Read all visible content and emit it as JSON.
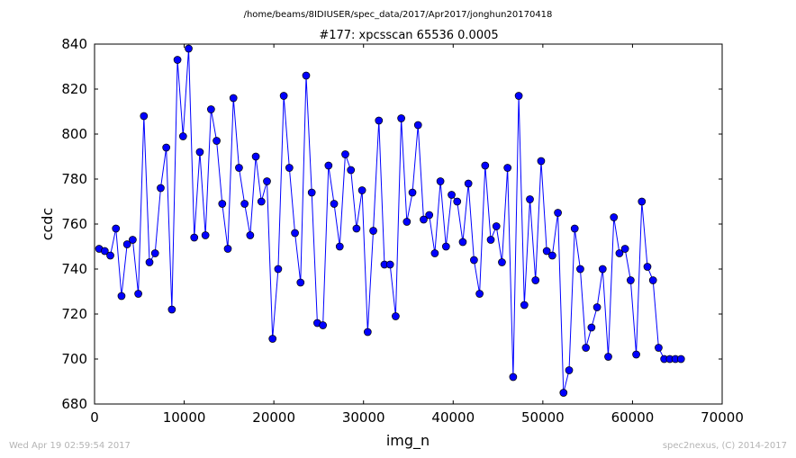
{
  "page": {
    "path_title": "/home/beams/8IDIUSER/spec_data/2017/Apr2017/jonghun20170418",
    "footer_left": "Wed Apr 19 02:59:54 2017",
    "footer_right": "spec2nexus, (C) 2014-2017"
  },
  "chart_data": {
    "type": "line",
    "title": "#177: xpcsscan 65536 0.0005",
    "xlabel": "img_n",
    "ylabel": "ccdc",
    "xlim": [
      0,
      70000
    ],
    "ylim": [
      680,
      840
    ],
    "x_ticks": [
      "0",
      "10000",
      "20000",
      "30000",
      "40000",
      "50000",
      "60000",
      "70000"
    ],
    "y_ticks": [
      "680",
      "700",
      "720",
      "740",
      "760",
      "780",
      "800",
      "820",
      "840"
    ],
    "grid": false,
    "line_color": "#0000ff",
    "marker": "circle",
    "series": [
      {
        "x": [
          512,
          1136,
          1760,
          2384,
          3008,
          3632,
          4256,
          4880,
          5504,
          6128,
          6752,
          7376,
          8000,
          8624,
          9248,
          9872,
          10496,
          11120,
          11744,
          12368,
          12992,
          13616,
          14240,
          14864,
          15488,
          16112,
          16736,
          17360,
          17984,
          18608,
          19232,
          19856,
          20480,
          21104,
          21728,
          22352,
          22976,
          23600,
          24224,
          24848,
          25472,
          26096,
          26720,
          27344,
          27968,
          28592,
          29216,
          29840,
          30464,
          31088,
          31712,
          32336,
          32960,
          33584,
          34208,
          34832,
          35456,
          36080,
          36704,
          37328,
          37952,
          38576,
          39200,
          39824,
          40448,
          41072,
          41696,
          42320,
          42944,
          43568,
          44192,
          44816,
          45440,
          46064,
          46688,
          47312,
          47936,
          48560,
          49184,
          49808,
          50432,
          51056,
          51680,
          52304,
          52928,
          53552,
          54176,
          54800,
          55424,
          56048,
          56672,
          57296,
          57920,
          58544,
          59168,
          59792,
          60416,
          61040,
          61664,
          62288,
          62912,
          63536,
          64160,
          64784,
          65408
        ],
        "y": [
          749,
          748,
          746,
          758,
          728,
          751,
          753,
          729,
          808,
          743,
          747,
          776,
          794,
          722,
          833,
          799,
          838,
          754,
          792,
          755,
          811,
          797,
          769,
          749,
          816,
          785,
          769,
          755,
          790,
          770,
          779,
          709,
          740,
          817,
          785,
          756,
          734,
          826,
          774,
          716,
          715,
          786,
          769,
          750,
          791,
          784,
          758,
          775,
          712,
          757,
          806,
          742,
          742,
          719,
          807,
          761,
          774,
          804,
          762,
          764,
          747,
          779,
          750,
          773,
          770,
          752,
          778,
          744,
          729,
          786,
          753,
          759,
          743,
          785,
          692,
          817,
          724,
          771,
          735,
          788,
          748,
          746,
          765,
          685,
          695,
          758,
          740,
          705,
          714,
          723,
          740,
          701,
          763,
          747,
          749,
          735,
          702,
          770,
          741,
          735,
          705,
          700,
          700,
          700,
          700
        ]
      }
    ]
  }
}
